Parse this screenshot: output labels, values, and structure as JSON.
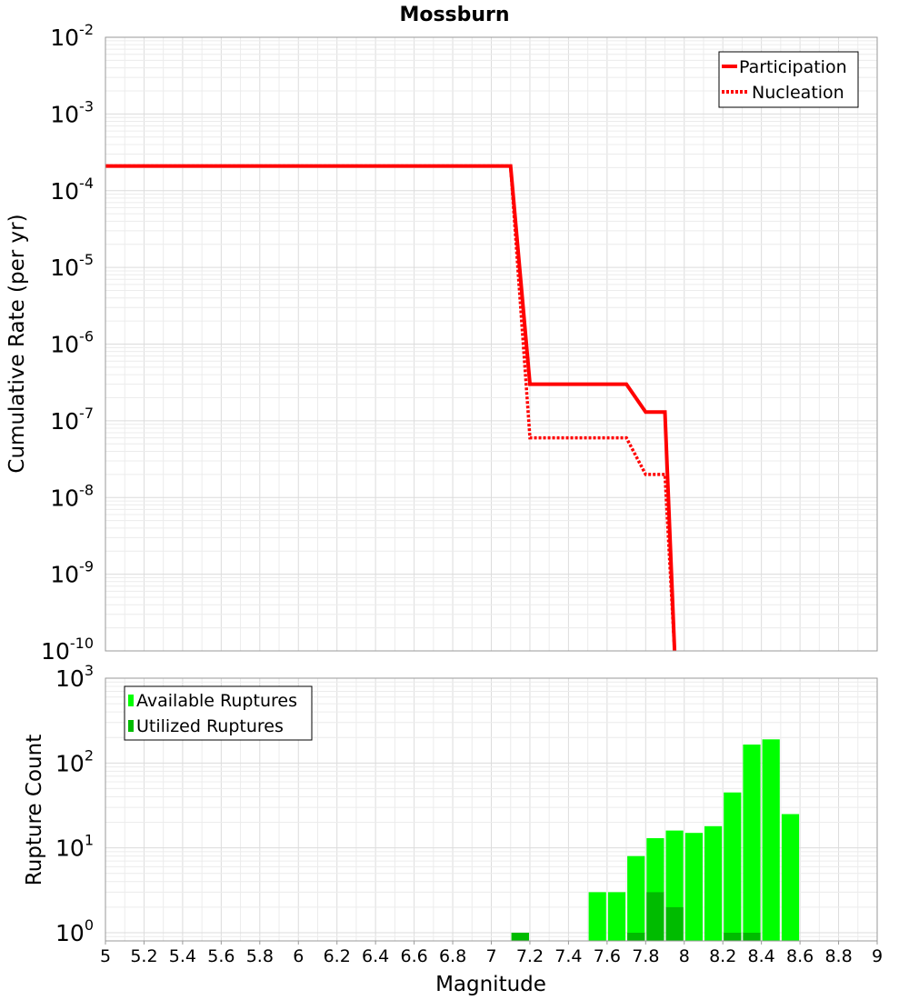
{
  "chart_data": [
    {
      "type": "line",
      "title": "Mossburn",
      "xlabel": "",
      "ylabel": "Cumulative Rate (per yr)",
      "xlim": [
        5,
        9
      ],
      "ylim": [
        1e-10,
        0.01
      ],
      "yscale": "log",
      "grid": true,
      "legend_position": "top-right",
      "y_ticks": [
        {
          "base": "10",
          "exp": "-10"
        },
        {
          "base": "10",
          "exp": "-9"
        },
        {
          "base": "10",
          "exp": "-8"
        },
        {
          "base": "10",
          "exp": "-7"
        },
        {
          "base": "10",
          "exp": "-6"
        },
        {
          "base": "10",
          "exp": "-5"
        },
        {
          "base": "10",
          "exp": "-4"
        },
        {
          "base": "10",
          "exp": "-3"
        },
        {
          "base": "10",
          "exp": "-2"
        }
      ],
      "series": [
        {
          "name": "Participation",
          "color": "#ff0000",
          "style": "solid",
          "x": [
            5.0,
            7.1,
            7.2,
            7.7,
            7.8,
            7.9,
            7.95
          ],
          "y": [
            0.00021,
            0.00021,
            3e-07,
            3e-07,
            1.3e-07,
            1.3e-07,
            1e-10
          ]
        },
        {
          "name": "Nucleation",
          "color": "#ff0000",
          "style": "dotted",
          "x": [
            5.0,
            7.1,
            7.2,
            7.7,
            7.8,
            7.9,
            7.95
          ],
          "y": [
            0.00021,
            0.00021,
            6e-08,
            6e-08,
            2e-08,
            2e-08,
            1e-10
          ]
        }
      ]
    },
    {
      "type": "bar",
      "title": "",
      "xlabel": "Magnitude",
      "ylabel": "Rupture Count",
      "xlim": [
        5,
        9
      ],
      "ylim": [
        0.8,
        1000
      ],
      "yscale": "log",
      "grid": true,
      "legend_position": "top-left",
      "x_ticks": [
        "5",
        "5.2",
        "5.4",
        "5.6",
        "5.8",
        "6",
        "6.2",
        "6.4",
        "6.6",
        "6.8",
        "7",
        "7.2",
        "7.4",
        "7.6",
        "7.8",
        "8",
        "8.2",
        "8.4",
        "8.6",
        "8.8",
        "9"
      ],
      "y_ticks": [
        {
          "base": "10",
          "exp": "0"
        },
        {
          "base": "10",
          "exp": "1"
        },
        {
          "base": "10",
          "exp": "2"
        },
        {
          "base": "10",
          "exp": "3"
        }
      ],
      "series": [
        {
          "name": "Available Ruptures",
          "color": "#00ff00",
          "x": [
            7.15,
            7.55,
            7.65,
            7.75,
            7.85,
            7.95,
            8.05,
            8.15,
            8.25,
            8.35,
            8.45,
            8.55
          ],
          "values": [
            1,
            3,
            3,
            8,
            13,
            16,
            15,
            18,
            45,
            165,
            190,
            25
          ]
        },
        {
          "name": "Utilized Ruptures",
          "color": "#00bb00",
          "x": [
            7.15,
            7.75,
            7.85,
            7.95,
            8.25,
            8.35
          ],
          "values": [
            1,
            1,
            3,
            2,
            1,
            1
          ]
        }
      ]
    }
  ]
}
